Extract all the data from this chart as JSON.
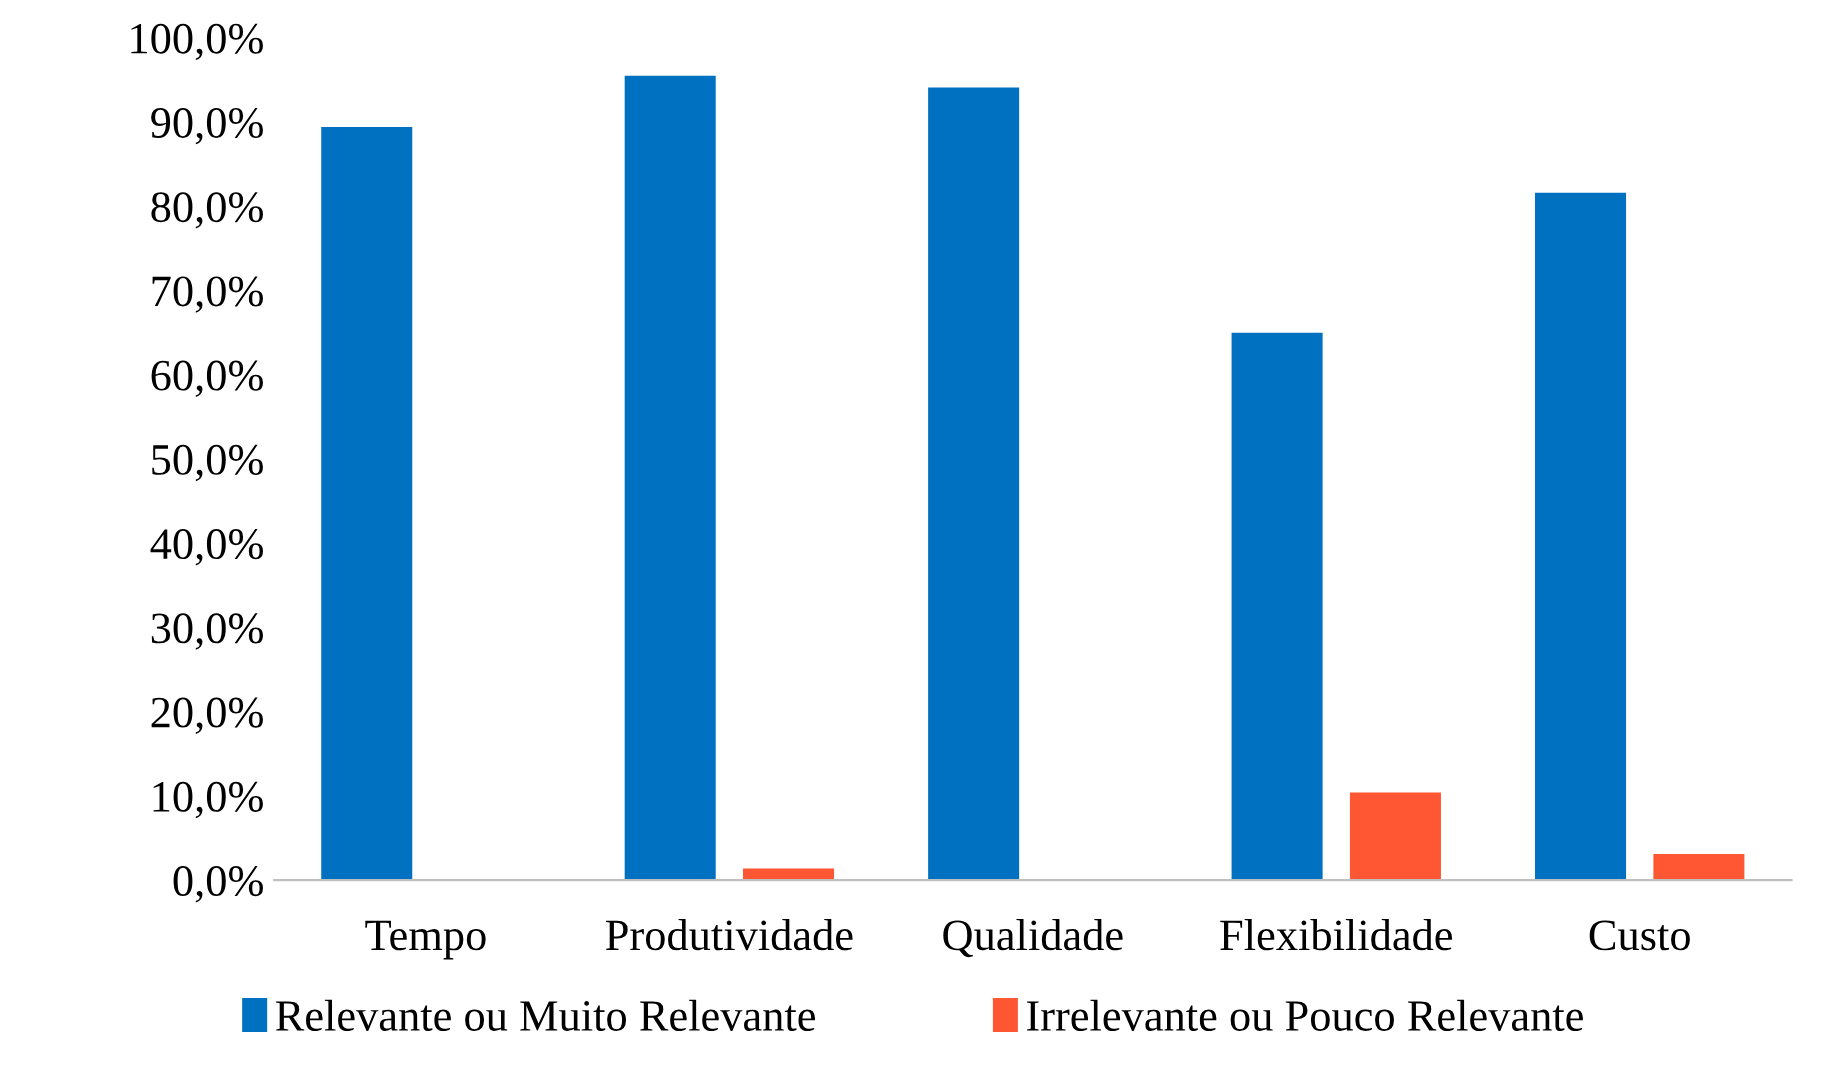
{
  "chart_data": {
    "type": "bar",
    "categories": [
      "Tempo",
      "Produtividade",
      "Qualidade",
      "Flexibilidade",
      "Custo"
    ],
    "series": [
      {
        "name": "Relevante ou Muito Relevante",
        "color": "#0070c0",
        "values": [
          89.4,
          95.5,
          94.1,
          65.0,
          81.6
        ]
      },
      {
        "name": "Irrelevante ou Pouco Relevante",
        "color": "#ff5733",
        "values": [
          0,
          1.4,
          0,
          10.4,
          3.1
        ]
      }
    ],
    "ylim": [
      0,
      100
    ],
    "yticks": [
      {
        "value": 0,
        "label": "0,0%"
      },
      {
        "value": 10,
        "label": "10,0%"
      },
      {
        "value": 20,
        "label": "20,0%"
      },
      {
        "value": 30,
        "label": "30,0%"
      },
      {
        "value": 40,
        "label": "40,0%"
      },
      {
        "value": 50,
        "label": "50,0%"
      },
      {
        "value": 60,
        "label": "60,0%"
      },
      {
        "value": 70,
        "label": "70,0%"
      },
      {
        "value": 80,
        "label": "80,0%"
      },
      {
        "value": 90,
        "label": "90,0%"
      },
      {
        "value": 100,
        "label": "100,0%"
      }
    ],
    "grid": false,
    "legend": "bottom"
  }
}
